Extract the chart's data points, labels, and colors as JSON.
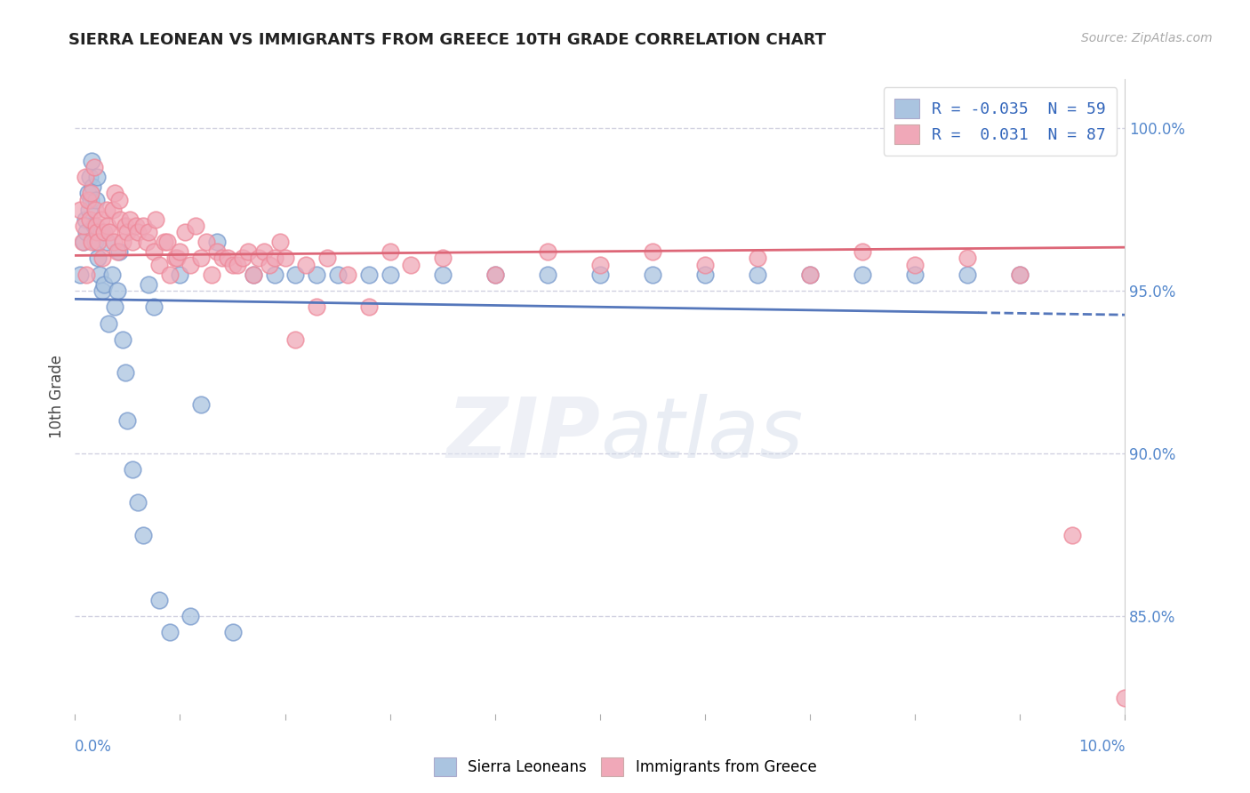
{
  "title": "SIERRA LEONEAN VS IMMIGRANTS FROM GREECE 10TH GRADE CORRELATION CHART",
  "source": "Source: ZipAtlas.com",
  "ylabel": "10th Grade",
  "xlim": [
    0.0,
    10.0
  ],
  "ylim": [
    82.0,
    101.5
  ],
  "yticks": [
    85.0,
    90.0,
    95.0,
    100.0
  ],
  "ytick_labels": [
    "85.0%",
    "90.0%",
    "95.0%",
    "100.0%"
  ],
  "legend_label_blue": "R = -0.035  N = 59",
  "legend_label_pink": "R =  0.031  N = 87",
  "legend_labels": [
    "Sierra Leoneans",
    "Immigrants from Greece"
  ],
  "blue_color": "#aac4e0",
  "pink_color": "#f0a8b8",
  "blue_line_color": "#5577bb",
  "pink_line_color": "#dd6677",
  "blue_color_dark": "#7799cc",
  "pink_color_dark": "#ee8899",
  "R_blue": -0.035,
  "R_pink": 0.031,
  "N_blue": 59,
  "N_pink": 87,
  "blue_scatter_x": [
    0.05,
    0.08,
    0.1,
    0.11,
    0.12,
    0.13,
    0.14,
    0.15,
    0.16,
    0.17,
    0.18,
    0.19,
    0.2,
    0.21,
    0.22,
    0.23,
    0.25,
    0.26,
    0.28,
    0.3,
    0.32,
    0.35,
    0.38,
    0.4,
    0.42,
    0.45,
    0.48,
    0.5,
    0.55,
    0.6,
    0.65,
    0.7,
    0.75,
    0.8,
    0.9,
    1.0,
    1.1,
    1.2,
    1.35,
    1.5,
    1.7,
    1.9,
    2.1,
    2.3,
    2.5,
    2.8,
    3.0,
    3.5,
    4.0,
    4.5,
    5.0,
    5.5,
    6.0,
    6.5,
    7.0,
    7.5,
    8.0,
    8.5,
    9.0
  ],
  "blue_scatter_y": [
    95.5,
    96.5,
    97.2,
    96.8,
    98.0,
    97.5,
    98.5,
    97.8,
    99.0,
    98.2,
    97.0,
    96.5,
    97.8,
    98.5,
    96.0,
    95.5,
    96.8,
    95.0,
    95.2,
    96.5,
    94.0,
    95.5,
    94.5,
    95.0,
    96.2,
    93.5,
    92.5,
    91.0,
    89.5,
    88.5,
    87.5,
    95.2,
    94.5,
    85.5,
    84.5,
    95.5,
    85.0,
    91.5,
    96.5,
    84.5,
    95.5,
    95.5,
    95.5,
    95.5,
    95.5,
    95.5,
    95.5,
    95.5,
    95.5,
    95.5,
    95.5,
    95.5,
    95.5,
    95.5,
    95.5,
    95.5,
    95.5,
    95.5,
    95.5
  ],
  "pink_scatter_x": [
    0.05,
    0.07,
    0.08,
    0.1,
    0.11,
    0.12,
    0.14,
    0.15,
    0.16,
    0.18,
    0.19,
    0.2,
    0.21,
    0.22,
    0.25,
    0.26,
    0.28,
    0.3,
    0.31,
    0.33,
    0.36,
    0.37,
    0.38,
    0.4,
    0.42,
    0.43,
    0.45,
    0.48,
    0.5,
    0.52,
    0.55,
    0.58,
    0.6,
    0.65,
    0.68,
    0.7,
    0.75,
    0.77,
    0.8,
    0.85,
    0.88,
    0.9,
    0.95,
    0.97,
    1.0,
    1.05,
    1.1,
    1.15,
    1.2,
    1.25,
    1.3,
    1.35,
    1.4,
    1.45,
    1.5,
    1.55,
    1.6,
    1.65,
    1.7,
    1.75,
    1.8,
    1.85,
    1.9,
    1.95,
    2.0,
    2.1,
    2.2,
    2.3,
    2.4,
    2.6,
    2.8,
    3.0,
    3.2,
    3.5,
    4.0,
    4.5,
    5.0,
    5.5,
    6.0,
    6.5,
    7.0,
    7.5,
    8.0,
    8.5,
    9.0,
    9.5,
    10.0
  ],
  "pink_scatter_y": [
    97.5,
    96.5,
    97.0,
    98.5,
    95.5,
    97.8,
    97.2,
    98.0,
    96.5,
    98.8,
    97.5,
    97.0,
    96.8,
    96.5,
    97.2,
    96.0,
    96.8,
    97.5,
    97.0,
    96.8,
    97.5,
    96.5,
    98.0,
    96.2,
    97.8,
    97.2,
    96.5,
    97.0,
    96.8,
    97.2,
    96.5,
    97.0,
    96.8,
    97.0,
    96.5,
    96.8,
    96.2,
    97.2,
    95.8,
    96.5,
    96.5,
    95.5,
    96.0,
    96.0,
    96.2,
    96.8,
    95.8,
    97.0,
    96.0,
    96.5,
    95.5,
    96.2,
    96.0,
    96.0,
    95.8,
    95.8,
    96.0,
    96.2,
    95.5,
    96.0,
    96.2,
    95.8,
    96.0,
    96.5,
    96.0,
    93.5,
    95.8,
    94.5,
    96.0,
    95.5,
    94.5,
    96.2,
    95.8,
    96.0,
    95.5,
    96.2,
    95.8,
    96.2,
    95.8,
    96.0,
    95.5,
    96.2,
    95.8,
    96.0,
    95.5,
    87.5,
    82.5
  ]
}
